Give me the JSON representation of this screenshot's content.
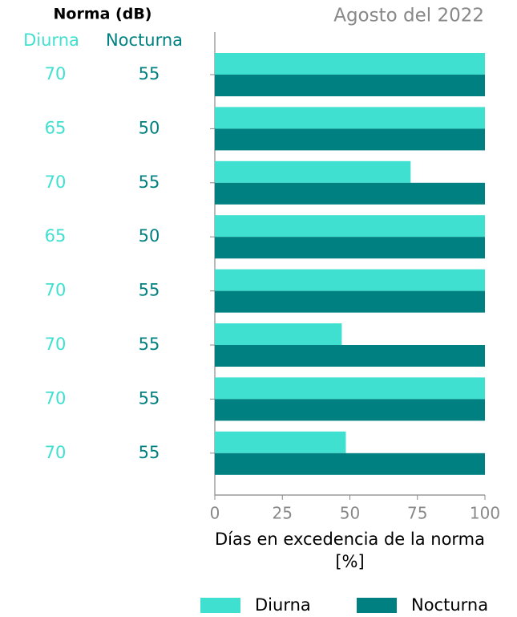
{
  "chart_data": {
    "type": "barh",
    "title": "Agosto del 2022",
    "xlabel": "Días en excedencia de la norma [%]",
    "categories": [
      null,
      null,
      null,
      null,
      null,
      null,
      null,
      null
    ],
    "series": [
      {
        "name": "Diurna",
        "color": "#40e0d0",
        "values": [
          100,
          100,
          72.5,
          100,
          100,
          47,
          100,
          48.5
        ]
      },
      {
        "name": "Nocturna",
        "color": "#008080",
        "values": [
          100,
          100,
          100,
          100,
          100,
          100,
          100,
          100
        ]
      }
    ],
    "norms": {
      "title": "Norma (dB)",
      "headers": [
        "Diurna",
        "Nocturna"
      ],
      "diurna": [
        70,
        65,
        70,
        65,
        70,
        70,
        70,
        70
      ],
      "nocturna": [
        55,
        50,
        55,
        50,
        55,
        55,
        55,
        55
      ]
    },
    "xlim": [
      0,
      100
    ],
    "xticks": [
      0,
      25,
      50,
      75,
      100
    ],
    "legend": "bottom"
  }
}
